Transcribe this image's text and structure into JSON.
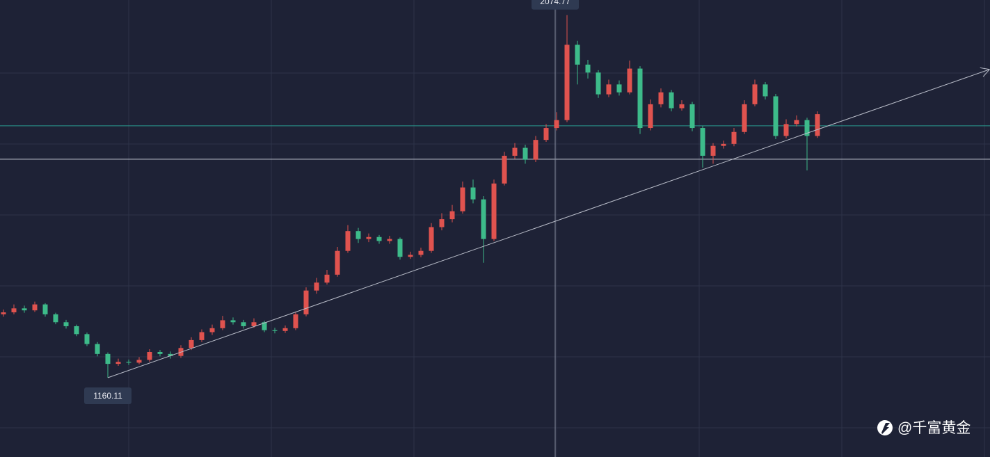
{
  "chart_data": {
    "type": "candlestick",
    "up_color": "#e0534f",
    "down_color": "#3dbb8a",
    "ylim": [
      960,
      2113
    ],
    "grid": true,
    "open": [
      1320,
      1325,
      1335,
      1330,
      1345,
      1320,
      1300,
      1290,
      1270,
      1245,
      1220,
      1195,
      1200,
      1198,
      1205,
      1225,
      1220,
      1215,
      1235,
      1255,
      1275,
      1285,
      1305,
      1300,
      1290,
      1300,
      1280,
      1278,
      1285,
      1320,
      1380,
      1400,
      1420,
      1480,
      1530,
      1510,
      1515,
      1505,
      1510,
      1465,
      1470,
      1480,
      1540,
      1560,
      1580,
      1640,
      1610,
      1510,
      1650,
      1720,
      1740,
      1710,
      1760,
      1790,
      1810,
      2000,
      1950,
      1930,
      1875,
      1900,
      1880,
      1940,
      1790,
      1850,
      1880,
      1840,
      1850,
      1790,
      1720,
      1745,
      1750,
      1780,
      1850,
      1900,
      1870,
      1770,
      1800,
      1810,
      1770
    ],
    "high": [
      1332,
      1345,
      1342,
      1352,
      1348,
      1324,
      1306,
      1294,
      1274,
      1250,
      1224,
      1208,
      1206,
      1212,
      1232,
      1230,
      1226,
      1242,
      1262,
      1282,
      1294,
      1316,
      1312,
      1306,
      1310,
      1304,
      1286,
      1292,
      1326,
      1388,
      1412,
      1432,
      1490,
      1545,
      1538,
      1524,
      1520,
      1518,
      1514,
      1478,
      1488,
      1550,
      1575,
      1596,
      1655,
      1660,
      1618,
      1660,
      1730,
      1752,
      1748,
      1770,
      1800,
      1830,
      2074.77,
      2010,
      1962,
      1936,
      1912,
      1910,
      1960,
      1946,
      1862,
      1890,
      1886,
      1860,
      1856,
      1796,
      1752,
      1758,
      1790,
      1860,
      1912,
      1906,
      1876,
      1812,
      1822,
      1816,
      1832
    ],
    "low": [
      1314,
      1320,
      1324,
      1326,
      1314,
      1295,
      1284,
      1265,
      1240,
      1214,
      1160.11,
      1190,
      1192,
      1194,
      1200,
      1214,
      1208,
      1210,
      1230,
      1250,
      1268,
      1280,
      1294,
      1284,
      1286,
      1275,
      1272,
      1273,
      1280,
      1315,
      1372,
      1395,
      1415,
      1475,
      1500,
      1502,
      1498,
      1498,
      1458,
      1460,
      1464,
      1475,
      1532,
      1552,
      1574,
      1600,
      1450,
      1505,
      1645,
      1712,
      1700,
      1704,
      1755,
      1784,
      1805,
      1900,
      1915,
      1866,
      1868,
      1872,
      1875,
      1775,
      1784,
      1842,
      1832,
      1834,
      1782,
      1690,
      1700,
      1738,
      1744,
      1775,
      1845,
      1862,
      1762,
      1764,
      1794,
      1683,
      1765
    ],
    "close": [
      1325,
      1335,
      1330,
      1345,
      1320,
      1300,
      1290,
      1270,
      1245,
      1220,
      1195,
      1200,
      1198,
      1205,
      1225,
      1220,
      1215,
      1235,
      1255,
      1275,
      1285,
      1305,
      1300,
      1290,
      1300,
      1280,
      1278,
      1285,
      1320,
      1380,
      1400,
      1420,
      1480,
      1530,
      1510,
      1515,
      1505,
      1510,
      1465,
      1470,
      1480,
      1540,
      1560,
      1580,
      1640,
      1610,
      1510,
      1650,
      1720,
      1740,
      1710,
      1760,
      1790,
      1810,
      2000,
      1950,
      1930,
      1875,
      1900,
      1880,
      1940,
      1790,
      1850,
      1880,
      1840,
      1850,
      1790,
      1720,
      1745,
      1750,
      1780,
      1850,
      1900,
      1870,
      1770,
      1800,
      1810,
      1770,
      1825
    ],
    "levels": [
      {
        "value": 1795.6,
        "color": "#2a9d8f"
      },
      {
        "value": 1711.4,
        "color": "#c8ccd6"
      }
    ],
    "trendline": {
      "start": {
        "index": 10,
        "price": 1160.11
      },
      "end": {
        "index": 94.5,
        "price": 1938
      },
      "color": "#b9bdc9"
    },
    "watermark": "@千富黄金"
  }
}
